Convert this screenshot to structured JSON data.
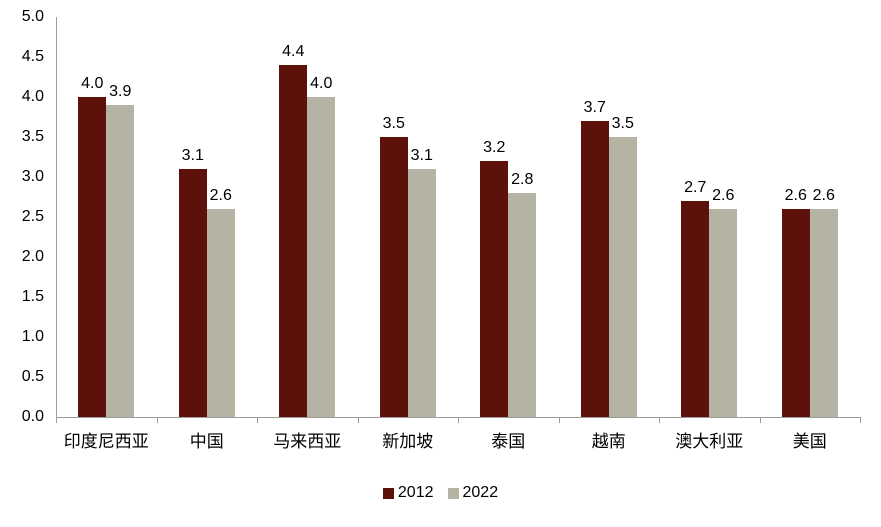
{
  "chart_data": {
    "type": "bar",
    "categories": [
      "印度尼西亚",
      "中国",
      "马来西亚",
      "新加坡",
      "泰国",
      "越南",
      "澳大利亚",
      "美国"
    ],
    "series": [
      {
        "name": "2012",
        "color": "#5C120A",
        "values": [
          4.0,
          3.1,
          4.4,
          3.5,
          3.2,
          3.7,
          2.7,
          2.6
        ]
      },
      {
        "name": "2022",
        "color": "#B5B3A4",
        "values": [
          3.9,
          2.6,
          4.0,
          3.1,
          2.8,
          3.5,
          2.6,
          2.6
        ]
      }
    ],
    "value_labels": [
      "4.0",
      "3.1",
      "4.4",
      "3.5",
      "3.2",
      "3.7",
      "2.7",
      "2.6",
      "3.9",
      "2.6",
      "4.0",
      "3.1",
      "2.8",
      "3.5",
      "2.6",
      "2.6"
    ],
    "title": "",
    "xlabel": "",
    "ylabel": "",
    "ylim": [
      0.0,
      5.0
    ],
    "ytick_step": 0.5,
    "yticks": [
      "5.0",
      "4.5",
      "4.0",
      "3.5",
      "3.0",
      "2.5",
      "2.0",
      "1.5",
      "1.0",
      "0.5",
      "0.0"
    ],
    "grid": false,
    "legend_position": "bottom"
  },
  "legend": {
    "items": [
      {
        "label": "2012",
        "color": "#5C120A"
      },
      {
        "label": "2022",
        "color": "#B5B3A4"
      }
    ]
  },
  "axis": {
    "color": "#9C9C9C"
  }
}
